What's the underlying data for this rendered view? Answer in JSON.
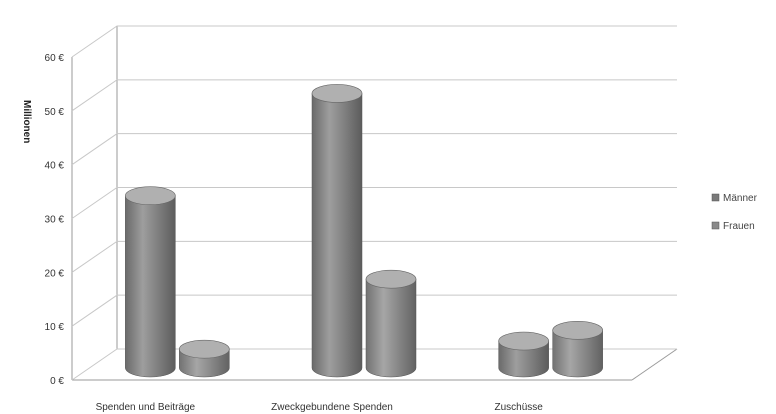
{
  "chart_data": {
    "type": "bar",
    "ylabel": "Millionen",
    "categories": [
      "Spenden und Beiträge",
      "Zweckgebundene Spenden",
      "Zuschüsse"
    ],
    "series": [
      {
        "name": "Männer",
        "values": [
          32,
          51,
          5
        ],
        "color": "#7a7a7a"
      },
      {
        "name": "Frauen",
        "values": [
          3.5,
          16.5,
          7
        ],
        "color": "#8a8a8a"
      }
    ],
    "ylim": [
      0,
      60
    ],
    "yticks": [
      "0 €",
      "10 €",
      "20 €",
      "30 €",
      "40 €",
      "50 €",
      "60 €"
    ],
    "legend_position": "right",
    "grid": true
  }
}
